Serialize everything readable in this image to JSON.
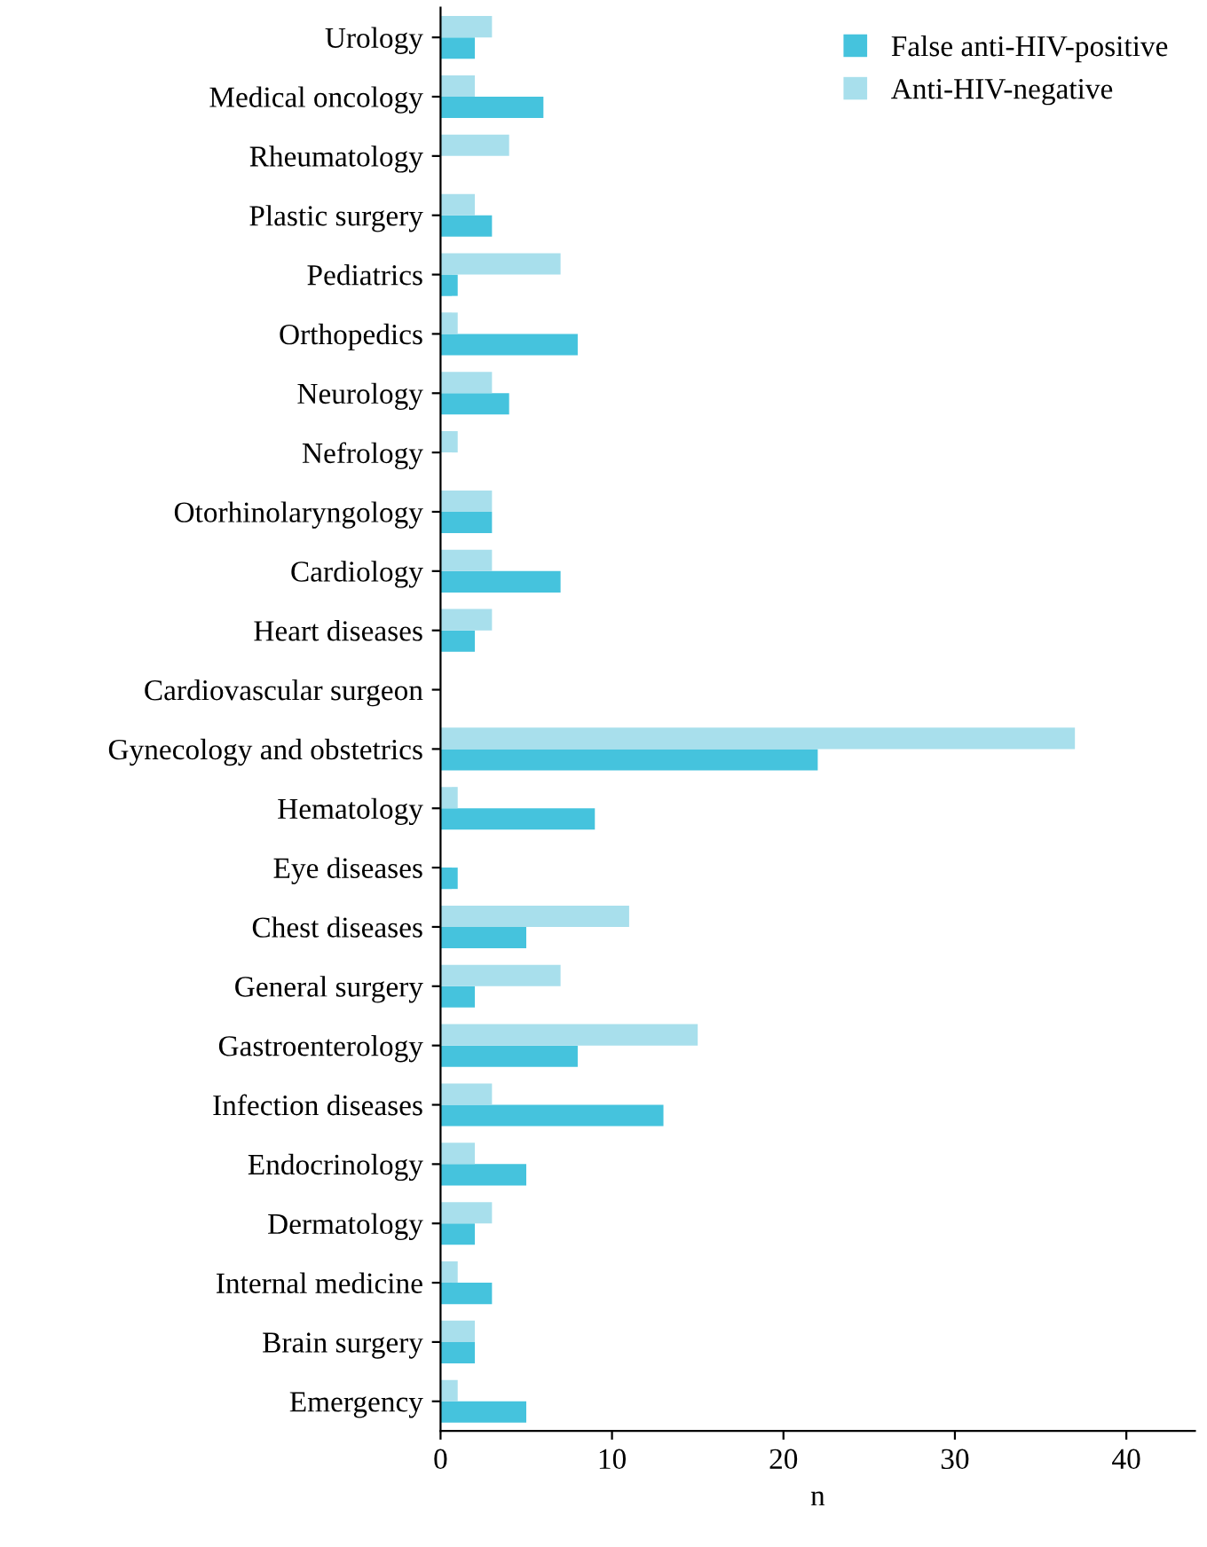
{
  "chart_data": {
    "type": "bar",
    "orientation": "horizontal",
    "xlabel": "n",
    "categories": [
      "Urology",
      "Medical oncology",
      "Rheumatology",
      "Plastic surgery",
      "Pediatrics",
      "Orthopedics",
      "Neurology",
      "Nefrology",
      "Otorhinolaryngology",
      "Cardiology",
      "Heart diseases",
      "Cardiovascular surgeon",
      "Gynecology and obstetrics",
      "Hematology",
      "Eye diseases",
      "Chest diseases",
      "General surgery",
      "Gastroenterology",
      "Infection diseases",
      "Endocrinology",
      "Dermatology",
      "Internal medicine",
      "Brain surgery",
      "Emergency"
    ],
    "series": [
      {
        "name": "False anti-HIV-positive",
        "color": "#45c3dd",
        "values": [
          2,
          6,
          0,
          3,
          1,
          8,
          4,
          0,
          3,
          7,
          2,
          0,
          22,
          9,
          1,
          5,
          2,
          8,
          13,
          5,
          2,
          3,
          2,
          5
        ]
      },
      {
        "name": "Anti-HIV-negative",
        "color": "#a8dfec",
        "values": [
          3,
          2,
          4,
          2,
          7,
          1,
          3,
          1,
          3,
          3,
          3,
          0,
          37,
          1,
          0,
          11,
          7,
          15,
          3,
          2,
          3,
          1,
          2,
          1
        ]
      }
    ],
    "xlim": [
      0,
      44
    ],
    "xticks": [
      0,
      10,
      20,
      30,
      40
    ],
    "grid": false,
    "legend": "top right"
  }
}
